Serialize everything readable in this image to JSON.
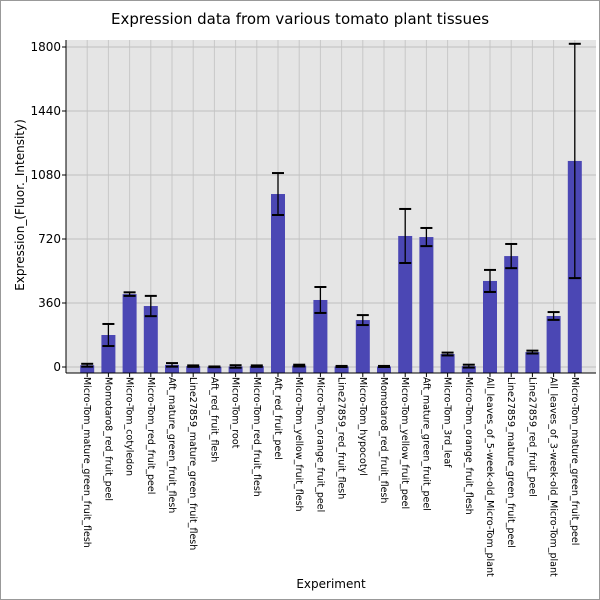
{
  "chart_data": {
    "type": "bar",
    "title": "Expression data from various tomato plant tissues",
    "xlabel": "Experiment",
    "ylabel": "Expression_(Fluor._Intensity)",
    "ylim": [
      -30,
      1850
    ],
    "yticks": [
      0,
      360,
      720,
      1080,
      1440,
      1800
    ],
    "grid": true,
    "bar_color": "#4b47b4",
    "background": "#e5e5e5",
    "categories": [
      "Micro-Tom_mature_green_fruit_flesh",
      "Momotaro8_red_fruit_peel",
      "Micro-Tom_cotyledon",
      "Micro-Tom_red_fruit_peel",
      "Aft_mature_green_fruit_flesh",
      "Line27859_mature_green_fruit_flesh",
      "Aft_red_fruit_flesh",
      "Micro-Tom_root",
      "Micro-Tom_red_fruit_flesh",
      "Aft_red_fruit_peel",
      "Micro-Tom_yellow_fruit_flesh",
      "Micro-Tom_orange_fruit_peel",
      "Line27859_red_fruit_flesh",
      "Micro-Tom_hypocotyl",
      "Momotaro8_red_fruit_flesh",
      "Micro-Tom_yellow_fruit_peel",
      "Aft_mature_green_fruit_peel",
      "Micro-Tom_3rd_leaf",
      "Micro-Tom_orange_fruit_flesh",
      "All_leaves_of_5-week-old_Micro-Tom_plant",
      "Line27859_mature_green_fruit_peel",
      "Line27859_red_fruit_peel",
      "All_leaves_of_3-week-old_Micro-Tom_plant",
      "Micro-Tom_mature_green_fruit_peel"
    ],
    "values": [
      10,
      180,
      410,
      343,
      12,
      5,
      1,
      3,
      5,
      973,
      8,
      377,
      3,
      264,
      3,
      737,
      731,
      73,
      5,
      484,
      624,
      84,
      287,
      1159
    ],
    "errors": [
      8,
      62,
      10,
      57,
      10,
      4,
      2,
      7,
      4,
      118,
      5,
      73,
      3,
      28,
      3,
      152,
      51,
      8,
      8,
      62,
      68,
      8,
      22,
      659
    ]
  }
}
